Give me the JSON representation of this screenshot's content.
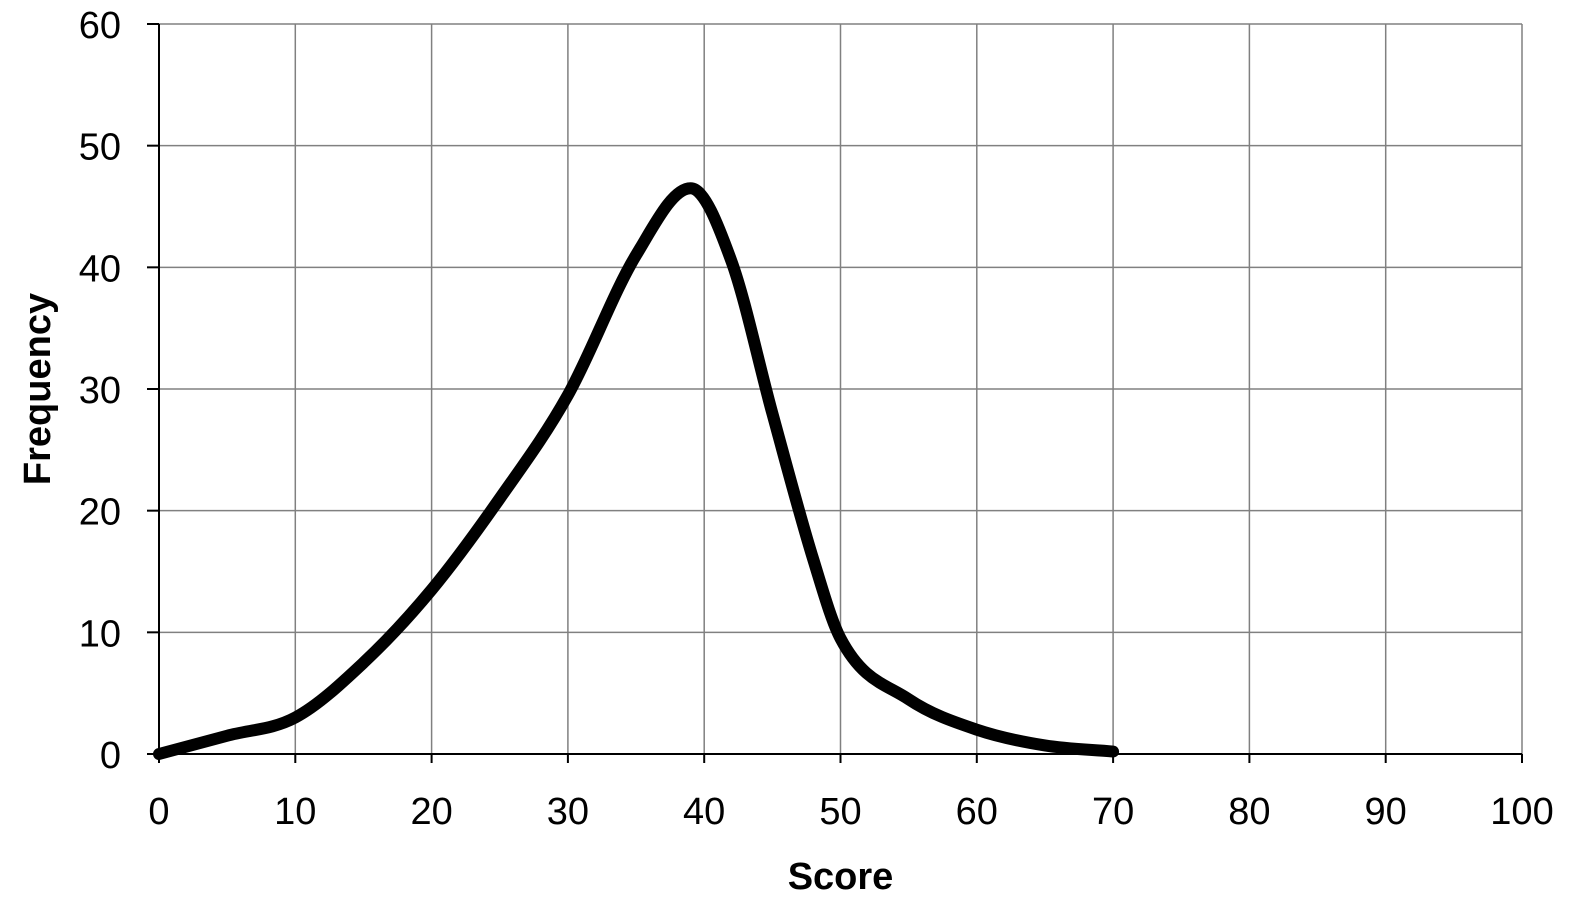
{
  "chart_data": {
    "type": "line",
    "title": "",
    "xlabel": "Score",
    "ylabel": "Frequency",
    "xlim": [
      0,
      100
    ],
    "ylim": [
      0,
      60
    ],
    "xticks": [
      0,
      10,
      20,
      30,
      40,
      50,
      60,
      70,
      80,
      90,
      100
    ],
    "yticks": [
      0,
      10,
      20,
      30,
      40,
      50,
      60
    ],
    "grid": true,
    "legend": "none",
    "colors": {
      "line": "#000000",
      "grid": "#808080",
      "axis": "#000000"
    },
    "series": [
      {
        "x": [
          0,
          5,
          10,
          15,
          20,
          25,
          30,
          35,
          39,
          42,
          45,
          48,
          50,
          55,
          60,
          65,
          70
        ],
        "y": [
          0,
          1.5,
          3,
          7.5,
          13.5,
          21,
          29.5,
          41,
          46.5,
          40.5,
          28,
          16,
          9.5,
          4.5,
          2,
          0.7,
          0.2
        ]
      }
    ]
  }
}
